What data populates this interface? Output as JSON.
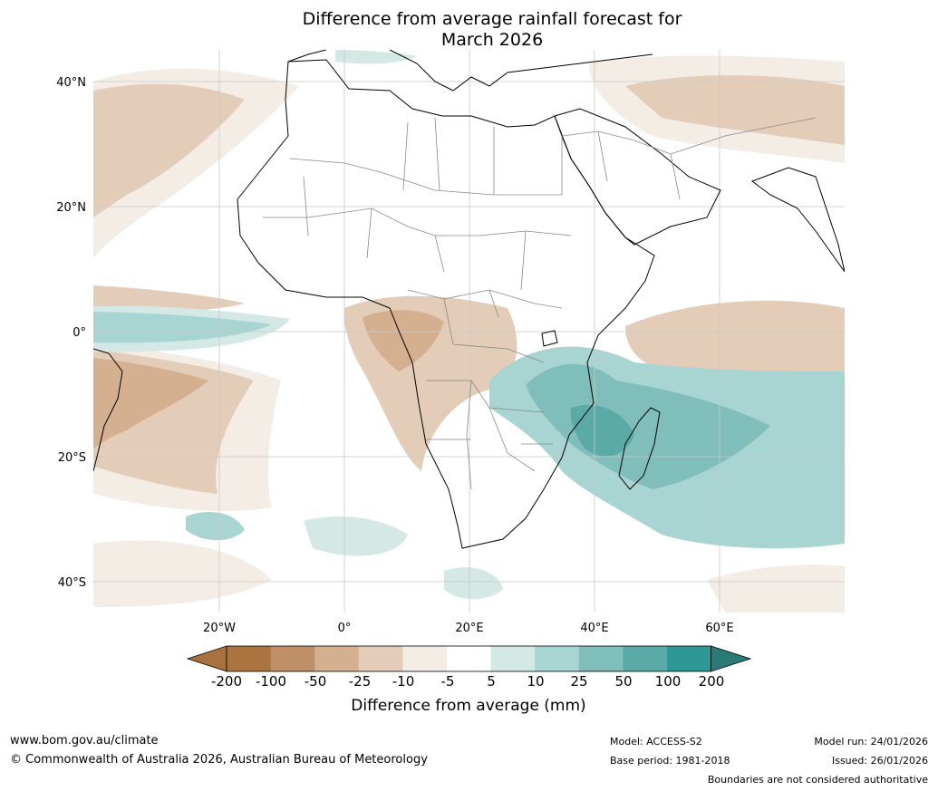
{
  "title_line1": "Difference from average rainfall forecast for",
  "title_line2": "March 2026",
  "map": {
    "lat_labels": [
      "40°N",
      "20°N",
      "0°",
      "20°S",
      "40°S"
    ],
    "lon_labels": [
      "20°W",
      "0°",
      "20°E",
      "40°E",
      "60°E"
    ]
  },
  "colorbar": {
    "label": "Difference from average (mm)",
    "ticks": [
      "-200",
      "-100",
      "-50",
      "-25",
      "-10",
      "-5",
      "5",
      "10",
      "25",
      "50",
      "100",
      "200"
    ],
    "colors": [
      "#a8723f",
      "#ab7440",
      "#bf9068",
      "#d4b090",
      "#e3cdb8",
      "#f3ede6",
      "#ffffff",
      "#d4e8e6",
      "#a8d4d2",
      "#80bebc",
      "#5aaaa8",
      "#2e9896",
      "#2a7a78"
    ]
  },
  "footer": {
    "url": "www.bom.gov.au/climate",
    "copyright": "© Commonwealth of Australia 2026, Australian Bureau of Meteorology",
    "model": "Model: ACCESS-S2",
    "base_period": "Base period: 1981-2018",
    "model_run": "Model run: 24/01/2026",
    "issued": "Issued: 26/01/2026",
    "disclaimer": "Boundaries are not considered authoritative"
  }
}
